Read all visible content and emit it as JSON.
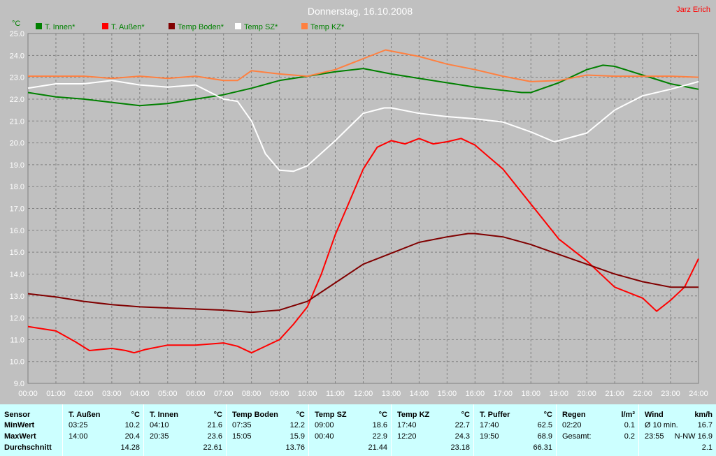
{
  "header": {
    "title": "Donnerstag, 16.10.2008",
    "author": "Jarz Erich"
  },
  "colors": {
    "background": "#c0c0c0",
    "grid": "#808080",
    "t_innen": "#008000",
    "t_aussen": "#ff0000",
    "temp_boden": "#800000",
    "temp_sz": "#ffffff",
    "temp_kz": "#ff8040",
    "table_bg": "#ccffff"
  },
  "chart_data": {
    "type": "line",
    "ylabel": "°C",
    "ylim": [
      9.0,
      25.0
    ],
    "xlim": [
      0,
      24
    ],
    "yticks": [
      "9.0",
      "10.0",
      "11.0",
      "12.0",
      "13.0",
      "14.0",
      "15.0",
      "16.0",
      "17.0",
      "18.0",
      "19.0",
      "20.0",
      "21.0",
      "22.0",
      "23.0",
      "24.0",
      "25.0"
    ],
    "xticks": [
      "00:00",
      "01:00",
      "02:00",
      "03:00",
      "04:00",
      "05:00",
      "06:00",
      "07:00",
      "08:00",
      "09:00",
      "10:00",
      "11:00",
      "12:00",
      "13:00",
      "14:00",
      "15:00",
      "16:00",
      "17:00",
      "18:00",
      "19:00",
      "20:00",
      "21:00",
      "22:00",
      "23:00",
      "24:00"
    ],
    "grid": true,
    "legend": "top",
    "series": [
      {
        "name": "T. Innen*",
        "color": "#008000",
        "points": [
          [
            0,
            22.3
          ],
          [
            1,
            22.1
          ],
          [
            2,
            22.0
          ],
          [
            3,
            21.85
          ],
          [
            4,
            21.7
          ],
          [
            5,
            21.8
          ],
          [
            6,
            22.0
          ],
          [
            7,
            22.2
          ],
          [
            8,
            22.5
          ],
          [
            9,
            22.85
          ],
          [
            10,
            23.05
          ],
          [
            11,
            23.25
          ],
          [
            12,
            23.4
          ],
          [
            13,
            23.15
          ],
          [
            14,
            22.95
          ],
          [
            15,
            22.75
          ],
          [
            16,
            22.55
          ],
          [
            17,
            22.4
          ],
          [
            17.67,
            22.3
          ],
          [
            18,
            22.3
          ],
          [
            19,
            22.75
          ],
          [
            20,
            23.35
          ],
          [
            20.58,
            23.55
          ],
          [
            21,
            23.5
          ],
          [
            22,
            23.1
          ],
          [
            23,
            22.7
          ],
          [
            24,
            22.45
          ]
        ]
      },
      {
        "name": "T. Außen*",
        "color": "#ff0000",
        "points": [
          [
            0,
            11.6
          ],
          [
            1,
            11.4
          ],
          [
            1.7,
            10.9
          ],
          [
            2.2,
            10.5
          ],
          [
            3,
            10.6
          ],
          [
            3.5,
            10.5
          ],
          [
            3.8,
            10.4
          ],
          [
            4.2,
            10.55
          ],
          [
            5,
            10.75
          ],
          [
            6,
            10.75
          ],
          [
            7,
            10.85
          ],
          [
            7.5,
            10.7
          ],
          [
            8,
            10.4
          ],
          [
            9,
            11.0
          ],
          [
            9.5,
            11.7
          ],
          [
            10,
            12.5
          ],
          [
            10.5,
            14.0
          ],
          [
            11,
            15.8
          ],
          [
            12,
            18.8
          ],
          [
            12.5,
            19.8
          ],
          [
            13,
            20.1
          ],
          [
            13.5,
            19.95
          ],
          [
            14,
            20.2
          ],
          [
            14.5,
            19.95
          ],
          [
            15,
            20.05
          ],
          [
            15.5,
            20.2
          ],
          [
            16,
            19.9
          ],
          [
            17,
            18.8
          ],
          [
            18,
            17.2
          ],
          [
            19,
            15.6
          ],
          [
            20,
            14.6
          ],
          [
            21,
            13.4
          ],
          [
            22,
            12.9
          ],
          [
            22.5,
            12.3
          ],
          [
            23,
            12.8
          ],
          [
            23.5,
            13.4
          ],
          [
            24,
            14.7
          ]
        ]
      },
      {
        "name": "Temp Boden*",
        "color": "#800000",
        "points": [
          [
            0,
            13.1
          ],
          [
            1,
            12.95
          ],
          [
            2,
            12.75
          ],
          [
            3,
            12.6
          ],
          [
            4,
            12.5
          ],
          [
            5,
            12.45
          ],
          [
            6,
            12.4
          ],
          [
            7,
            12.35
          ],
          [
            8,
            12.25
          ],
          [
            9,
            12.35
          ],
          [
            10,
            12.75
          ],
          [
            11,
            13.6
          ],
          [
            12,
            14.45
          ],
          [
            13,
            14.95
          ],
          [
            14,
            15.45
          ],
          [
            15,
            15.7
          ],
          [
            15.75,
            15.85
          ],
          [
            16,
            15.85
          ],
          [
            17,
            15.7
          ],
          [
            18,
            15.35
          ],
          [
            19,
            14.9
          ],
          [
            20,
            14.45
          ],
          [
            21,
            14.0
          ],
          [
            22,
            13.65
          ],
          [
            23,
            13.4
          ],
          [
            24,
            13.4
          ]
        ]
      },
      {
        "name": "Temp SZ*",
        "color": "#ffffff",
        "points": [
          [
            0,
            22.5
          ],
          [
            1,
            22.7
          ],
          [
            2,
            22.7
          ],
          [
            3,
            22.85
          ],
          [
            4,
            22.65
          ],
          [
            5,
            22.55
          ],
          [
            6,
            22.65
          ],
          [
            7,
            22.0
          ],
          [
            7.5,
            21.9
          ],
          [
            8,
            21.0
          ],
          [
            8.5,
            19.5
          ],
          [
            9,
            18.75
          ],
          [
            9.5,
            18.7
          ],
          [
            10,
            18.95
          ],
          [
            11,
            20.1
          ],
          [
            12,
            21.35
          ],
          [
            12.75,
            21.6
          ],
          [
            13,
            21.6
          ],
          [
            14,
            21.35
          ],
          [
            15,
            21.2
          ],
          [
            16,
            21.1
          ],
          [
            17,
            20.95
          ],
          [
            18,
            20.5
          ],
          [
            18.83,
            20.05
          ],
          [
            19,
            20.1
          ],
          [
            20,
            20.45
          ],
          [
            21,
            21.5
          ],
          [
            22,
            22.15
          ],
          [
            23,
            22.45
          ],
          [
            24,
            22.8
          ]
        ]
      },
      {
        "name": "Temp KZ*",
        "color": "#ff8040",
        "points": [
          [
            0,
            23.05
          ],
          [
            1,
            23.05
          ],
          [
            2,
            23.05
          ],
          [
            3,
            22.95
          ],
          [
            4,
            23.05
          ],
          [
            5,
            22.95
          ],
          [
            6,
            23.05
          ],
          [
            7,
            22.85
          ],
          [
            7.5,
            22.85
          ],
          [
            8,
            23.3
          ],
          [
            9,
            23.15
          ],
          [
            10,
            23.05
          ],
          [
            11,
            23.35
          ],
          [
            12,
            23.85
          ],
          [
            12.8,
            24.25
          ],
          [
            13,
            24.2
          ],
          [
            14,
            23.95
          ],
          [
            15,
            23.6
          ],
          [
            16,
            23.35
          ],
          [
            17,
            23.05
          ],
          [
            18,
            22.8
          ],
          [
            19,
            22.85
          ],
          [
            20,
            23.1
          ],
          [
            21,
            23.05
          ],
          [
            22,
            23.05
          ],
          [
            23,
            23.05
          ],
          [
            24,
            23.0
          ]
        ]
      }
    ]
  },
  "table": {
    "row_labels": [
      "Sensor",
      "MinWert",
      "MaxWert",
      "Durchschnitt"
    ],
    "columns": [
      {
        "name": "T. Außen",
        "unit": "°C",
        "min_time": "03:25",
        "min_value": "10.2",
        "max_time": "14:00",
        "max_value": "20.4",
        "avg": "14.28"
      },
      {
        "name": "T. Innen",
        "unit": "°C",
        "min_time": "04:10",
        "min_value": "21.6",
        "max_time": "20:35",
        "max_value": "23.6",
        "avg": "22.61"
      },
      {
        "name": "Temp Boden",
        "unit": "°C",
        "min_time": "07:35",
        "min_value": "12.2",
        "max_time": "15:05",
        "max_value": "15.9",
        "avg": "13.76"
      },
      {
        "name": "Temp SZ",
        "unit": "°C",
        "min_time": "09:00",
        "min_value": "18.6",
        "max_time": "00:40",
        "max_value": "22.9",
        "avg": "21.44"
      },
      {
        "name": "Temp KZ",
        "unit": "°C",
        "min_time": "17:40",
        "min_value": "22.7",
        "max_time": "12:20",
        "max_value": "24.3",
        "avg": "23.18"
      },
      {
        "name": "T. Puffer",
        "unit": "°C",
        "min_time": "17:40",
        "min_value": "62.5",
        "max_time": "19:50",
        "max_value": "68.9",
        "avg": "66.31"
      },
      {
        "name": "Regen",
        "unit": "l/m²",
        "min_time": "02:20",
        "min_value": "0.1",
        "max_time": "Gesamt:",
        "max_value": "0.2",
        "avg": ""
      },
      {
        "name": "Wind",
        "unit": "km/h",
        "min_time": "Ø 10 min.",
        "min_value": "16.7",
        "max_time": "23:55",
        "max_value": "N-NW 16.9",
        "avg": "2.1"
      }
    ]
  }
}
